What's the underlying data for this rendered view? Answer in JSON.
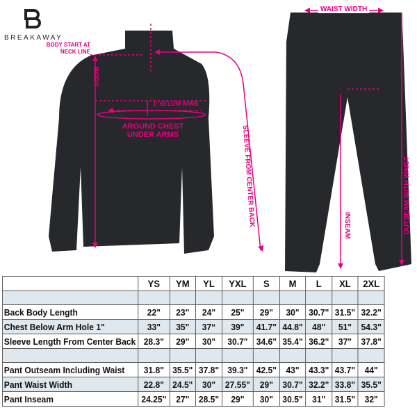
{
  "brand": {
    "name": "BREAKAWAY"
  },
  "colors": {
    "annotation": "#e5007e",
    "garment": "#26282c",
    "row_shade": "#dfe8ef"
  },
  "annotations": {
    "body_start": "BODY START AT NECK LINE",
    "body": "BODY",
    "below_arms": "1\" BELOW ARMS",
    "around_chest": "AROUND CHEST UNDER ARMS",
    "sleeve": "SLEEVE FROM CENTER BACK",
    "waist_width": "WAIST WIDTH",
    "inseam": "INSEAM",
    "outseam": "OUTSEAM WITH WAIST"
  },
  "table": {
    "sizes": [
      "YS",
      "YM",
      "YL",
      "YXL",
      "S",
      "M",
      "L",
      "XL",
      "2XL"
    ],
    "rows": [
      {
        "label": "Back Body Length",
        "values": [
          "22\"",
          "23\"",
          "24\"",
          "25\"",
          "29\"",
          "30\"",
          "30.7\"",
          "31.5\"",
          "32.2\""
        ]
      },
      {
        "label": "Chest Below Arm Hole 1\"",
        "values": [
          "33\"",
          "35\"",
          "37“",
          "39\"",
          "41.7\"",
          "44.8\"",
          "48\"",
          "51\"",
          "54.3\""
        ]
      },
      {
        "label": "Sleeve Length From Center Back",
        "values": [
          "28.3\"",
          "29\"",
          "30\"",
          "30.7\"",
          "34.6\"",
          "35.4\"",
          "36.2\"",
          "37\"",
          "37.8\""
        ]
      },
      {
        "label": "Pant Outseam Including Waist",
        "values": [
          "31.8\"",
          "35.5\"",
          "37.8\"",
          "39.3\"",
          "42.5\"",
          "43\"",
          "43.3\"",
          "43.7\"",
          "44\""
        ]
      },
      {
        "label": "Pant Waist Width",
        "values": [
          "22.8\"",
          "24.5\"",
          "30\"",
          "27.55\"",
          "29\"",
          "30.7\"",
          "32.2\"",
          "33.8\"",
          "35.5\""
        ]
      },
      {
        "label": "Pant Inseam",
        "values": [
          "24.25\"",
          "27\"",
          "28.5\"",
          "29\"",
          "30\"",
          "30.5\"",
          "31\"",
          "31.5\"",
          "32\""
        ]
      }
    ]
  }
}
